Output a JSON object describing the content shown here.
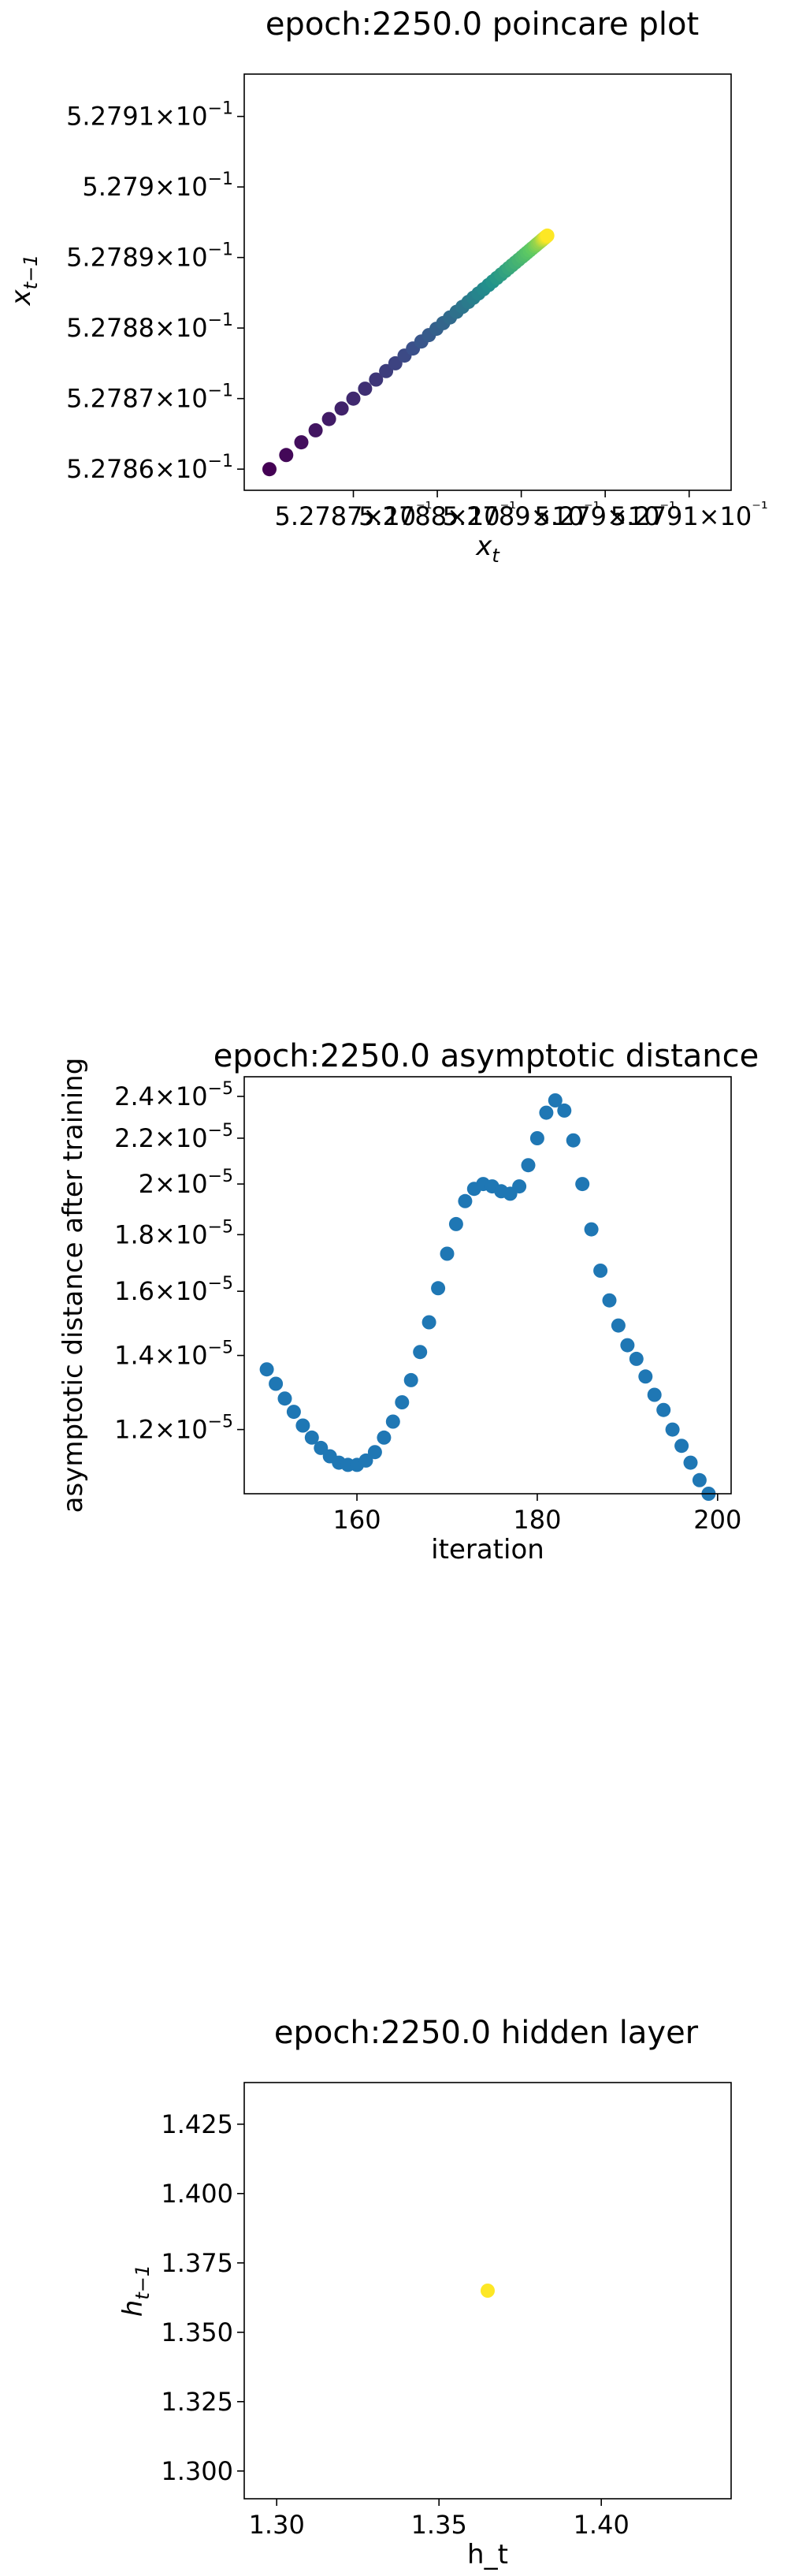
{
  "chart_data": [
    {
      "type": "scatter",
      "title": "epoch:2250.0 poincare plot",
      "xlabel": "x_t",
      "ylabel": "x_{t-1}",
      "xlim": [
        0.527857,
        0.527915
      ],
      "ylim": [
        0.527857,
        0.527916
      ],
      "xscale": "log",
      "yscale": "log",
      "grid": false,
      "xticks": [
        "5.2787×10⁻¹",
        "5.2788×10⁻¹",
        "5.2789×10⁻¹",
        "5.279×10⁻¹",
        "5.2791×10⁻¹"
      ],
      "xtick_values": [
        0.52787,
        0.52788,
        0.52789,
        0.5279,
        0.52791
      ],
      "yticks": [
        {
          "mantissa": "5.2786",
          "exp": "−1",
          "value": 0.52786
        },
        {
          "mantissa": "5.2787",
          "exp": "−1",
          "value": 0.52787
        },
        {
          "mantissa": "5.2788",
          "exp": "−1",
          "value": 0.52788
        },
        {
          "mantissa": "5.2789",
          "exp": "−1",
          "value": 0.52789
        },
        {
          "mantissa": "5.279",
          "exp": "−1",
          "value": 0.5279
        },
        {
          "mantissa": "5.2791",
          "exp": "−1",
          "value": 0.52791
        }
      ],
      "colormap": "viridis",
      "x": [
        0.52786,
        0.527862,
        0.5278638,
        0.5278655,
        0.5278671,
        0.5278686,
        0.52787,
        0.5278714,
        0.5278727,
        0.5278739,
        0.527875,
        0.5278761,
        0.5278771,
        0.5278781,
        0.527879,
        0.5278799,
        0.5278807,
        0.5278815,
        0.5278823,
        0.527883,
        0.5278837,
        0.5278843,
        0.5278849,
        0.5278855,
        0.5278861,
        0.5278866,
        0.5278871,
        0.5278876,
        0.5278881,
        0.5278885,
        0.5278889,
        0.5278893,
        0.5278897,
        0.5278901,
        0.5278904,
        0.5278907,
        0.527891,
        0.5278913,
        0.5278916,
        0.5278918,
        0.527892,
        0.5278922,
        0.5278924,
        0.5278925,
        0.5278926,
        0.5278927,
        0.5278928,
        0.5278929,
        0.527893,
        0.5278931
      ],
      "y": [
        0.52786,
        0.527862,
        0.5278638,
        0.5278655,
        0.5278671,
        0.5278686,
        0.52787,
        0.5278714,
        0.5278727,
        0.5278739,
        0.527875,
        0.5278761,
        0.5278771,
        0.5278781,
        0.527879,
        0.5278799,
        0.5278807,
        0.5278815,
        0.5278823,
        0.527883,
        0.5278837,
        0.5278843,
        0.5278849,
        0.5278855,
        0.5278861,
        0.5278866,
        0.5278871,
        0.5278876,
        0.5278881,
        0.5278885,
        0.5278889,
        0.5278893,
        0.5278897,
        0.5278901,
        0.5278904,
        0.5278907,
        0.527891,
        0.5278913,
        0.5278916,
        0.5278918,
        0.527892,
        0.5278922,
        0.5278924,
        0.5278925,
        0.5278926,
        0.5278927,
        0.5278928,
        0.5278929,
        0.527893,
        0.5278931
      ]
    },
    {
      "type": "scatter",
      "title": "epoch:2250.0 asymptotic distance",
      "xlabel": "iteration",
      "ylabel": "asymptotic distance after training",
      "xlim": [
        147.5,
        201.5
      ],
      "ylim": [
        1.05e-05,
        2.5e-05
      ],
      "yscale": "log",
      "grid": false,
      "xticks": [
        "160",
        "180",
        "200"
      ],
      "xtick_values": [
        160,
        180,
        200
      ],
      "yticks": [
        {
          "mantissa": "1.2",
          "exp": "−5",
          "value": 1.2e-05
        },
        {
          "mantissa": "1.4",
          "exp": "−5",
          "value": 1.4e-05
        },
        {
          "mantissa": "1.6",
          "exp": "−5",
          "value": 1.6e-05
        },
        {
          "mantissa": "1.8",
          "exp": "−5",
          "value": 1.8e-05
        },
        {
          "mantissa": "2",
          "exp": "−5",
          "value": 2e-05
        },
        {
          "mantissa": "2.2",
          "exp": "−5",
          "value": 2.2e-05
        },
        {
          "mantissa": "2.4",
          "exp": "−5",
          "value": 2.4e-05
        }
      ],
      "color": "#1f77b4",
      "x": [
        150,
        151,
        152,
        153,
        154,
        155,
        156,
        157,
        158,
        159,
        160,
        161,
        162,
        163,
        164,
        165,
        166,
        167,
        168,
        169,
        170,
        171,
        172,
        173,
        174,
        175,
        176,
        177,
        178,
        179,
        180,
        181,
        182,
        183,
        184,
        185,
        186,
        187,
        188,
        189,
        190,
        191,
        192,
        193,
        194,
        195,
        196,
        197,
        198,
        199
      ],
      "y": [
        1.36e-05,
        1.32e-05,
        1.28e-05,
        1.245e-05,
        1.21e-05,
        1.18e-05,
        1.155e-05,
        1.135e-05,
        1.12e-05,
        1.115e-05,
        1.115e-05,
        1.125e-05,
        1.145e-05,
        1.18e-05,
        1.22e-05,
        1.27e-05,
        1.33e-05,
        1.41e-05,
        1.5e-05,
        1.61e-05,
        1.73e-05,
        1.84e-05,
        1.93e-05,
        1.98e-05,
        2e-05,
        1.99e-05,
        1.97e-05,
        1.96e-05,
        1.99e-05,
        2.08e-05,
        2.2e-05,
        2.32e-05,
        2.38e-05,
        2.33e-05,
        2.19e-05,
        2e-05,
        1.82e-05,
        1.67e-05,
        1.57e-05,
        1.49e-05,
        1.43e-05,
        1.39e-05,
        1.34e-05,
        1.29e-05,
        1.25e-05,
        1.2e-05,
        1.16e-05,
        1.12e-05,
        1.08e-05,
        1.05e-05
      ]
    },
    {
      "type": "scatter",
      "title": "epoch:2250.0 hidden layer",
      "xlabel": "h_t",
      "ylabel": "h_{t-1}",
      "xlim": [
        1.29,
        1.44
      ],
      "ylim": [
        1.29,
        1.44
      ],
      "grid": false,
      "xticks": [
        "1.30",
        "1.35",
        "1.40"
      ],
      "xtick_values": [
        1.3,
        1.35,
        1.4
      ],
      "yticks": [
        {
          "label": "1.300",
          "value": 1.3
        },
        {
          "label": "1.325",
          "value": 1.325
        },
        {
          "label": "1.350",
          "value": 1.35
        },
        {
          "label": "1.375",
          "value": 1.375
        },
        {
          "label": "1.400",
          "value": 1.4
        },
        {
          "label": "1.425",
          "value": 1.425
        }
      ],
      "color": "#fde725",
      "x": [
        1.365
      ],
      "y": [
        1.365
      ]
    }
  ]
}
